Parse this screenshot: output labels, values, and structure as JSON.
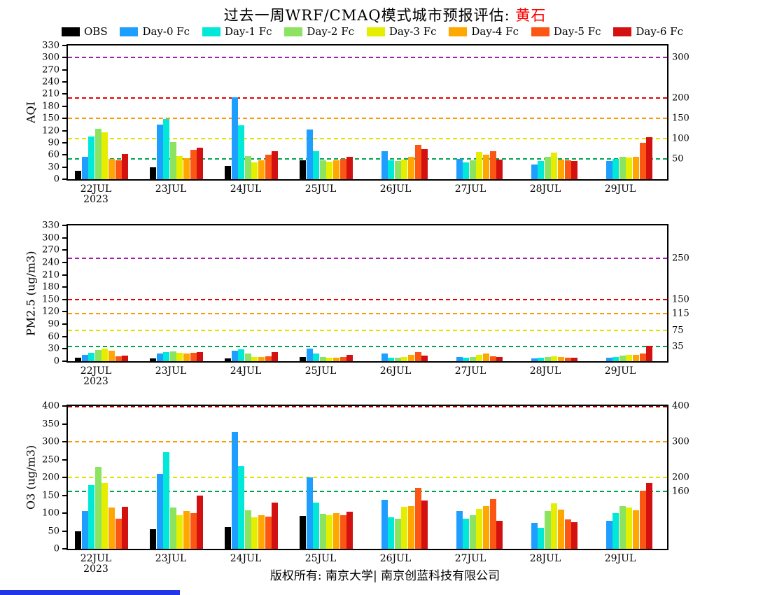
{
  "title": {
    "prefix": "过去一周WRF/CMAQ模式城市预报评估: ",
    "city": "黄石"
  },
  "footer": "版权所有: 南京大学| 南京创蓝科技有限公司",
  "legend": [
    {
      "label": "OBS",
      "color": "#000000"
    },
    {
      "label": "Day-0 Fc",
      "color": "#1e9fff"
    },
    {
      "label": "Day-1 Fc",
      "color": "#00e8d8"
    },
    {
      "label": "Day-2 Fc",
      "color": "#8ce362"
    },
    {
      "label": "Day-3 Fc",
      "color": "#e6ee00"
    },
    {
      "label": "Day-4 Fc",
      "color": "#ffa600"
    },
    {
      "label": "Day-5 Fc",
      "color": "#fc5614"
    },
    {
      "label": "Day-6 Fc",
      "color": "#d41111"
    }
  ],
  "chart_data": [
    {
      "type": "bar",
      "ylabel": "AQI",
      "ylim": [
        0,
        330
      ],
      "ytick_step": 30,
      "grid": false,
      "legend_position": "top-shared",
      "categories": [
        "22JUL",
        "23JUL",
        "24JUL",
        "25JUL",
        "26JUL",
        "27JUL",
        "28JUL",
        "29JUL"
      ],
      "x_sub_label": "2023",
      "ref_lines": [
        {
          "value": 50,
          "color": "#00a550",
          "label": "50"
        },
        {
          "value": 100,
          "color": "#e3e300",
          "label": "100"
        },
        {
          "value": 150,
          "color": "#ff9900",
          "label": "150"
        },
        {
          "value": 200,
          "color": "#e60000",
          "label": "200"
        },
        {
          "value": 300,
          "color": "#a020b0",
          "label": "300"
        }
      ],
      "series": [
        {
          "name": "OBS",
          "color": "#000000",
          "values": [
            20,
            30,
            32,
            47,
            0,
            0,
            0,
            0
          ]
        },
        {
          "name": "Day-0 Fc",
          "color": "#1e9fff",
          "values": [
            56,
            135,
            203,
            123,
            70,
            50,
            37,
            45
          ]
        },
        {
          "name": "Day-1 Fc",
          "color": "#00e8d8",
          "values": [
            105,
            148,
            133,
            70,
            46,
            42,
            45,
            50
          ]
        },
        {
          "name": "Day-2 Fc",
          "color": "#8ce362",
          "values": [
            125,
            92,
            57,
            46,
            45,
            47,
            55,
            55
          ]
        },
        {
          "name": "Day-3 Fc",
          "color": "#e6ee00",
          "values": [
            115,
            57,
            42,
            44,
            48,
            67,
            66,
            54
          ]
        },
        {
          "name": "Day-4 Fc",
          "color": "#ffa600",
          "values": [
            50,
            52,
            46,
            47,
            56,
            60,
            48,
            56
          ]
        },
        {
          "name": "Day-5 Fc",
          "color": "#fc5614",
          "values": [
            46,
            72,
            60,
            50,
            85,
            70,
            46,
            90
          ]
        },
        {
          "name": "Day-6 Fc",
          "color": "#d41111",
          "values": [
            62,
            78,
            70,
            56,
            74,
            48,
            45,
            103
          ]
        }
      ]
    },
    {
      "type": "bar",
      "ylabel": "PM2.5 (ug/m3)",
      "ylim": [
        0,
        330
      ],
      "ytick_step": 30,
      "grid": false,
      "legend_position": "top-shared",
      "categories": [
        "22JUL",
        "23JUL",
        "24JUL",
        "25JUL",
        "26JUL",
        "27JUL",
        "28JUL",
        "29JUL"
      ],
      "x_sub_label": "2023",
      "ref_lines": [
        {
          "value": 35,
          "color": "#00a550",
          "label": "35"
        },
        {
          "value": 75,
          "color": "#e3e300",
          "label": "75"
        },
        {
          "value": 115,
          "color": "#ff9900",
          "label": "115"
        },
        {
          "value": 150,
          "color": "#e60000",
          "label": "150"
        },
        {
          "value": 250,
          "color": "#a020b0",
          "label": "250"
        }
      ],
      "series": [
        {
          "name": "OBS",
          "color": "#000000",
          "values": [
            8,
            6,
            6,
            10,
            0,
            0,
            0,
            0
          ]
        },
        {
          "name": "Day-0 Fc",
          "color": "#1e9fff",
          "values": [
            15,
            18,
            26,
            31,
            18,
            10,
            6,
            8
          ]
        },
        {
          "name": "Day-1 Fc",
          "color": "#00e8d8",
          "values": [
            21,
            22,
            29,
            18,
            8,
            8,
            8,
            10
          ]
        },
        {
          "name": "Day-2 Fc",
          "color": "#8ce362",
          "values": [
            28,
            23,
            18,
            10,
            8,
            10,
            10,
            13
          ]
        },
        {
          "name": "Day-3 Fc",
          "color": "#e6ee00",
          "values": [
            30,
            21,
            10,
            8,
            10,
            15,
            12,
            15
          ]
        },
        {
          "name": "Day-4 Fc",
          "color": "#ffa600",
          "values": [
            26,
            18,
            10,
            8,
            15,
            18,
            10,
            15
          ]
        },
        {
          "name": "Day-5 Fc",
          "color": "#fc5614",
          "values": [
            12,
            20,
            12,
            10,
            22,
            12,
            8,
            18
          ]
        },
        {
          "name": "Day-6 Fc",
          "color": "#d41111",
          "values": [
            13,
            22,
            22,
            15,
            13,
            10,
            8,
            38
          ]
        }
      ]
    },
    {
      "type": "bar",
      "ylabel": "O3 (ug/m3)",
      "ylim": [
        0,
        400
      ],
      "ytick_step": 50,
      "grid": false,
      "legend_position": "top-shared",
      "categories": [
        "22JUL",
        "23JUL",
        "24JUL",
        "25JUL",
        "26JUL",
        "27JUL",
        "28JUL",
        "29JUL"
      ],
      "x_sub_label": "2023",
      "ref_lines": [
        {
          "value": 160,
          "color": "#00a550",
          "label": "160"
        },
        {
          "value": 200,
          "color": "#e3e300",
          "label": "200"
        },
        {
          "value": 300,
          "color": "#ff9900",
          "label": "300"
        },
        {
          "value": 400,
          "color": "#a00000",
          "label": "400"
        }
      ],
      "series": [
        {
          "name": "OBS",
          "color": "#000000",
          "values": [
            50,
            55,
            60,
            92,
            0,
            0,
            0,
            0
          ]
        },
        {
          "name": "Day-0 Fc",
          "color": "#1e9fff",
          "values": [
            105,
            210,
            328,
            200,
            138,
            105,
            72,
            78
          ]
        },
        {
          "name": "Day-1 Fc",
          "color": "#00e8d8",
          "values": [
            178,
            270,
            232,
            130,
            88,
            85,
            58,
            100
          ]
        },
        {
          "name": "Day-2 Fc",
          "color": "#8ce362",
          "values": [
            230,
            115,
            108,
            98,
            85,
            95,
            105,
            120
          ]
        },
        {
          "name": "Day-3 Fc",
          "color": "#e6ee00",
          "values": [
            185,
            95,
            88,
            95,
            118,
            112,
            127,
            115
          ]
        },
        {
          "name": "Day-4 Fc",
          "color": "#ffa600",
          "values": [
            115,
            105,
            95,
            100,
            120,
            120,
            110,
            108
          ]
        },
        {
          "name": "Day-5 Fc",
          "color": "#fc5614",
          "values": [
            85,
            100,
            90,
            95,
            170,
            140,
            82,
            162
          ]
        },
        {
          "name": "Day-6 Fc",
          "color": "#d41111",
          "values": [
            117,
            150,
            130,
            103,
            135,
            78,
            75,
            185
          ]
        }
      ]
    }
  ]
}
